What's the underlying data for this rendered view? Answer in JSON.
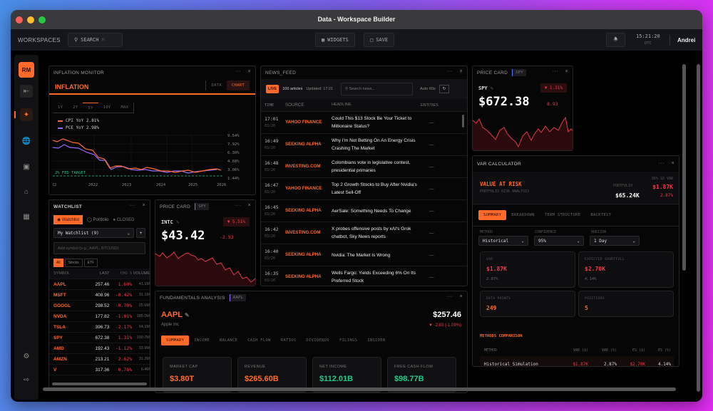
{
  "window": {
    "title": "Data - Workspace Builder",
    "traffic_lights": [
      "#ff5f57",
      "#febc2e",
      "#28c840"
    ]
  },
  "topbar": {
    "workspaces_label": "WORKSPACES",
    "search_label": "SEARCH",
    "widgets_label": "WIDGETS",
    "save_label": "SAVE",
    "time": "15:21:20",
    "timezone": "UTC",
    "user": "Andrei"
  },
  "sidebar": {
    "avatar": "RM",
    "items": [
      {
        "icon": "collapse-icon"
      },
      {
        "icon": "spark-icon",
        "active": true
      },
      {
        "icon": "globe-icon"
      },
      {
        "icon": "wallet-icon"
      },
      {
        "icon": "bank-icon"
      },
      {
        "icon": "calculator-icon"
      },
      {
        "icon": "gear-icon"
      },
      {
        "icon": "logout-icon"
      }
    ]
  },
  "inflation": {
    "panel_title": "INFLATION MONITOR",
    "heading": "INFLATION",
    "view_tabs": [
      "DATA",
      "CHART"
    ],
    "active_view": "CHART",
    "ranges": [
      "1Y",
      "2Y",
      "5Y",
      "10Y",
      "MAX"
    ],
    "active_range": "5Y",
    "legend": [
      {
        "label": "CPI YoY 2.81%",
        "color": "#ff6a2b"
      },
      {
        "label": "PCE YoY 2.98%",
        "color": "#9a6bff"
      }
    ],
    "y_ticks": [
      "9.54%",
      "7.92%",
      "6.30%",
      "4.68%",
      "3.06%",
      "1.44%"
    ],
    "x_ticks": [
      "2022",
      "2022",
      "2023",
      "2024",
      "2025",
      "2026"
    ],
    "fed_target_label": "2% FED TARGET"
  },
  "chart_data": {
    "type": "line",
    "title": "INFLATION",
    "x": [
      "2021.0",
      "2021.3",
      "2021.6",
      "2022.0",
      "2022.3",
      "2022.6",
      "2023.0",
      "2023.3",
      "2023.6",
      "2024.0",
      "2024.3",
      "2024.6",
      "2025.0",
      "2025.3",
      "2025.6",
      "2026.0"
    ],
    "series": [
      {
        "name": "CPI YoY",
        "values": [
          8.2,
          8.6,
          8.0,
          6.5,
          5.0,
          3.2,
          3.4,
          3.1,
          3.3,
          3.0,
          2.7,
          2.9,
          2.4,
          2.7,
          2.9,
          2.81
        ]
      },
      {
        "name": "PCE YoY",
        "values": [
          6.5,
          6.8,
          6.3,
          5.4,
          4.3,
          3.3,
          3.3,
          2.8,
          2.9,
          2.6,
          2.6,
          2.7,
          2.4,
          2.5,
          2.7,
          2.98
        ]
      },
      {
        "name": "2% Fed Target",
        "values": [
          2,
          2,
          2,
          2,
          2,
          2,
          2,
          2,
          2,
          2,
          2,
          2,
          2,
          2,
          2,
          2
        ]
      }
    ],
    "ylim": [
      1.44,
      9.54
    ],
    "xlabel": "",
    "ylabel": ""
  },
  "watchlist": {
    "panel_title": "WATCHLIST",
    "mode_tabs": [
      "Watchlist",
      "Portfolio"
    ],
    "market_status": "CLOSED",
    "list_name": "My Watchlist (9)",
    "add_placeholder": "Add symbol (e.g., AAPL, BTCUSD)",
    "filters": [
      "All",
      "Stocks",
      "ETF"
    ],
    "columns": [
      "SYMBOL",
      "LAST",
      "CHG %",
      "VOLUME"
    ],
    "rows": [
      {
        "symbol": "AAPL",
        "last": "257.46",
        "chg": "1.60%",
        "vol": "41.1M"
      },
      {
        "symbol": "MSFT",
        "last": "408.96",
        "chg": "-0.42%",
        "vol": "31.1M"
      },
      {
        "symbol": "GOOGL",
        "last": "298.52",
        "chg": "-0.70%",
        "vol": "25.6M"
      },
      {
        "symbol": "NVDA",
        "last": "177.82",
        "chg": "-1.01%",
        "vol": "185.0M"
      },
      {
        "symbol": "TSLA",
        "last": "396.73",
        "chg": "-2.17%",
        "vol": "64.1M"
      },
      {
        "symbol": "SPY",
        "last": "672.38",
        "chg": "1.31%",
        "vol": "100.7M"
      },
      {
        "symbol": "AMD",
        "last": "192.43",
        "chg": "-1.12%",
        "vol": "33.9M"
      },
      {
        "symbol": "AMZN",
        "last": "213.21",
        "chg": "2.62%",
        "vol": "31.2M"
      },
      {
        "symbol": "V",
        "last": "317.36",
        "chg": "0.76%",
        "vol": "6.4M"
      }
    ]
  },
  "price_intc": {
    "panel_title": "PRICE CARD",
    "tag": "SPY",
    "symbol": "INTC",
    "price": "$43.42",
    "change": "-2.53",
    "pct": "▼ 5.51%"
  },
  "price_spy": {
    "panel_title": "PRICE CARD",
    "tag": "SPY",
    "symbol": "SPY",
    "price": "$672.38",
    "change": "8.93",
    "pct": "▼ 1.31%"
  },
  "news": {
    "panel_title": "NEWS_FEED",
    "live": "LIVE",
    "count": "100 articles",
    "updated": "Updated: 17:21",
    "search_placeholder": "Search news...",
    "auto": "Auto 60s",
    "columns": [
      "TIME",
      "SOURCE",
      "HEADLINE",
      "ENTITIES"
    ],
    "rows": [
      {
        "time": "17:01",
        "date": "03/20",
        "source": "YAHOO FINANCE",
        "headline": "Could This $13 Stock Be Your Ticket to Millionaire Status?",
        "entities": "—"
      },
      {
        "time": "16:49",
        "date": "03/20",
        "source": "SEEKING ALPHA",
        "headline": "Why I'm Not Betting On An Energy Crisis Crashing The Market",
        "entities": "—"
      },
      {
        "time": "16:48",
        "date": "03/20",
        "source": "INVESTING.COM",
        "headline": "Colombians vote in legislative contest, presidential primaries",
        "entities": "—"
      },
      {
        "time": "16:47",
        "date": "03/20",
        "source": "YAHOO FINANCE",
        "headline": "Top 2 Growth Stocks to Buy After Nvidia's Latest Sell-Off",
        "entities": "—"
      },
      {
        "time": "16:45",
        "date": "03/20",
        "source": "SEEKING ALPHA",
        "headline": "AerSale: Something Needs To Change",
        "entities": "—"
      },
      {
        "time": "16:42",
        "date": "03/20",
        "source": "INVESTING.COM",
        "headline": "X probes offensive posts by xAI's Grok chatbot, Sky News reports",
        "entities": "—"
      },
      {
        "time": "16:40",
        "date": "03/20",
        "source": "SEEKING ALPHA",
        "headline": "Nvidia: The Market Is Wrong",
        "entities": "—"
      },
      {
        "time": "16:35",
        "date": "03/20",
        "source": "SEEKING ALPHA",
        "headline": "Wells Fargo: Yields Exceeding 6% On Its Preferred Stock",
        "entities": "—"
      }
    ]
  },
  "var": {
    "panel_title": "VAR CALCULATOR",
    "heading": "VALUE AT RISK",
    "subheading": "PORTFOLIO RISK ANALYSIS",
    "portfolio_label": "PORTFOLIO",
    "portfolio_value": "$65.24K",
    "var_label": "95% 1D VAR",
    "var_value": "$1.87K",
    "var_pct": "2.87%",
    "tabs": [
      "SUMMARY",
      "BREAKDOWN",
      "TERM STRUCTURE",
      "BACKTEST"
    ],
    "method_label": "METHOD",
    "method": "Historical",
    "confidence_label": "CONFIDENCE",
    "confidence": "95%",
    "horizon_label": "HORIZON",
    "horizon": "1 Day",
    "cards": [
      {
        "label": "VAR",
        "value": "$1.87K",
        "sub": "2.87%"
      },
      {
        "label": "EXPECTED SHORTFALL",
        "value": "$2.70K",
        "sub": "4.14%"
      },
      {
        "label": "DATA POINTS",
        "value": "249"
      },
      {
        "label": "POSITIONS",
        "value": "5"
      }
    ],
    "comparison_title": "METHODS COMPARISON",
    "comparison_cols": [
      "METHOD",
      "VAR ($)",
      "VAR (%)",
      "ES ($)",
      "ES (%)"
    ],
    "comparison_rows": [
      {
        "method": "Historical Simulation",
        "var_usd": "$1.87K",
        "var_pct": "2.87%",
        "es_usd": "$2.70K",
        "es_pct": "4.14%"
      }
    ]
  },
  "fundamentals": {
    "panel_title": "FUNDAMENTALS ANALYSIS",
    "tag": "AAPL",
    "symbol": "AAPL",
    "company": "Apple Inc",
    "price": "$257.46",
    "change": "▼ -2.83 (-1.09%)",
    "tabs": [
      "SUMMARY",
      "INCOME",
      "BALANCE",
      "CASH FLOW",
      "RATIOS",
      "DIVIDENDS",
      "FILINGS",
      "INSIDER"
    ],
    "metrics": [
      {
        "label": "MARKET CAP",
        "value": "$3.80T",
        "color": "#ff6a2b"
      },
      {
        "label": "REVENUE",
        "value": "$265.60B",
        "color": "#ff6a2b"
      },
      {
        "label": "NET INCOME",
        "value": "$112.01B",
        "color": "#22c987"
      },
      {
        "label": "FREE CASH FLOW",
        "value": "$98.77B",
        "color": "#22c987"
      }
    ]
  }
}
